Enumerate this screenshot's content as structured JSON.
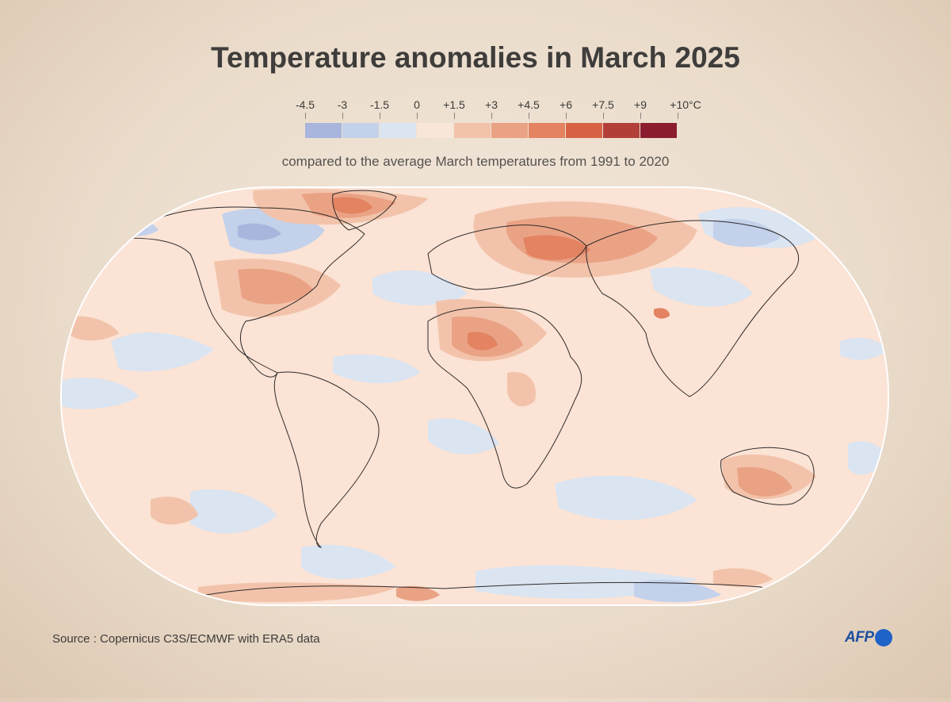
{
  "title": "Temperature anomalies in March 2025",
  "subtitle": "compared to the average March temperatures from 1991 to 2020",
  "legend": {
    "labels": [
      "-4.5",
      "-3",
      "-1.5",
      "0",
      "+1.5",
      "+3",
      "+4.5",
      "+6",
      "+7.5",
      "+9",
      "+10°C"
    ],
    "colors": [
      "#a8b6dd",
      "#c3d1eb",
      "#dbe4f1",
      "#f9e6da",
      "#f2c3aa",
      "#eaa285",
      "#e38362",
      "#d86344",
      "#b24039",
      "#8c1d31"
    ]
  },
  "map": {
    "ocean_color": "#fbe3d5",
    "land_base_color": "#f9e0d2",
    "outline_color": "#2f2b2a"
  },
  "source": "Source : Copernicus C3S/ECMWF with ERA5 data",
  "logo": {
    "text": "AFP"
  }
}
